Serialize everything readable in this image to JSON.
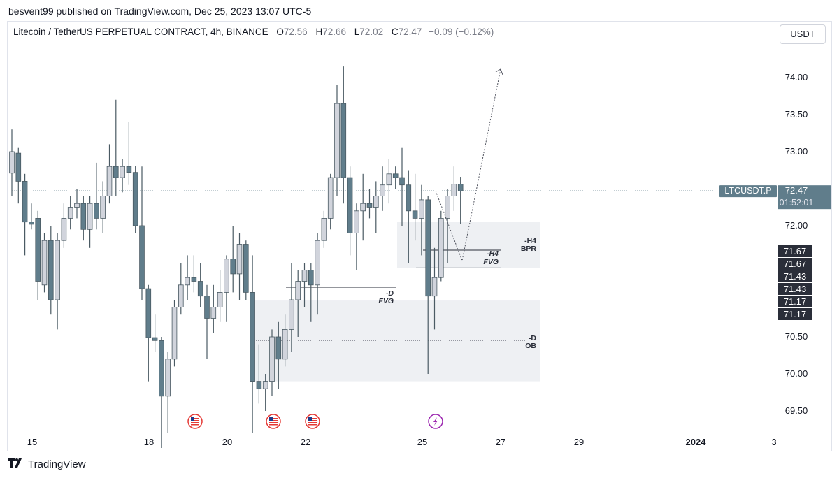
{
  "publish_line": "besvent99 published on TradingView.com, Dec 25, 2023 13:07 UTC-5",
  "legend": {
    "symbol": "Litecoin / TetherUS PERPETUAL CONTRACT, 4h, BINANCE",
    "o_label": "O",
    "o": "72.56",
    "h_label": "H",
    "h": "72.66",
    "l_label": "L",
    "l": "72.02",
    "c_label": "C",
    "c": "72.47",
    "change": "−0.09 (−0.12%)"
  },
  "currency": "USDT",
  "footer": {
    "brand": "TradingView",
    "logo": "tradingview-logo-icon"
  },
  "colors": {
    "up": "#d1d4dc",
    "down": "#607d8b",
    "zone": "#eef0f3",
    "price_line": "#607d8b",
    "axis_label_bg": "#2a2e39"
  },
  "chart_data": {
    "type": "candlestick",
    "y_axis": {
      "ticks": [
        "74.00",
        "73.50",
        "73.00",
        "72.00",
        "70.50",
        "70.00",
        "69.50"
      ],
      "range": [
        69.25,
        74.55
      ]
    },
    "x_axis": {
      "ticks": [
        "15",
        "18",
        "20",
        "22",
        "25",
        "27",
        "29",
        "2024",
        "3"
      ]
    },
    "candles": [
      {
        "o": 72.71,
        "h": 73.3,
        "l": 72.4,
        "c": 73.0
      },
      {
        "o": 72.98,
        "h": 73.05,
        "l": 72.3,
        "c": 72.6
      },
      {
        "o": 72.6,
        "h": 72.7,
        "l": 71.6,
        "c": 72.05
      },
      {
        "o": 72.05,
        "h": 72.3,
        "l": 71.95,
        "c": 72.02
      },
      {
        "o": 72.1,
        "h": 72.2,
        "l": 71.0,
        "c": 71.25
      },
      {
        "o": 71.2,
        "h": 71.9,
        "l": 71.1,
        "c": 71.8
      },
      {
        "o": 71.8,
        "h": 72.0,
        "l": 70.8,
        "c": 71.0
      },
      {
        "o": 71.0,
        "h": 71.9,
        "l": 70.6,
        "c": 71.8
      },
      {
        "o": 71.8,
        "h": 72.3,
        "l": 71.7,
        "c": 72.1
      },
      {
        "o": 72.1,
        "h": 72.4,
        "l": 71.95,
        "c": 72.25
      },
      {
        "o": 72.25,
        "h": 72.5,
        "l": 72.1,
        "c": 72.3
      },
      {
        "o": 72.3,
        "h": 72.4,
        "l": 71.8,
        "c": 71.95
      },
      {
        "o": 71.95,
        "h": 72.4,
        "l": 71.7,
        "c": 72.3
      },
      {
        "o": 72.3,
        "h": 72.85,
        "l": 71.95,
        "c": 72.1
      },
      {
        "o": 72.1,
        "h": 72.6,
        "l": 71.9,
        "c": 72.4
      },
      {
        "o": 72.4,
        "h": 73.1,
        "l": 72.3,
        "c": 72.8
      },
      {
        "o": 72.8,
        "h": 73.7,
        "l": 72.4,
        "c": 72.65
      },
      {
        "o": 72.65,
        "h": 72.9,
        "l": 72.45,
        "c": 72.8
      },
      {
        "o": 72.8,
        "h": 73.4,
        "l": 72.55,
        "c": 72.72
      },
      {
        "o": 72.72,
        "h": 72.81,
        "l": 71.9,
        "c": 72.0
      },
      {
        "o": 72.0,
        "h": 72.8,
        "l": 71.0,
        "c": 71.15
      },
      {
        "o": 71.15,
        "h": 71.2,
        "l": 69.9,
        "c": 70.49
      },
      {
        "o": 70.49,
        "h": 70.8,
        "l": 70.3,
        "c": 70.45
      },
      {
        "o": 70.45,
        "h": 70.5,
        "l": 69.0,
        "c": 69.7
      },
      {
        "o": 69.7,
        "h": 70.3,
        "l": 69.2,
        "c": 70.2
      },
      {
        "o": 70.2,
        "h": 71.0,
        "l": 70.1,
        "c": 70.9
      },
      {
        "o": 70.9,
        "h": 71.5,
        "l": 70.8,
        "c": 71.2
      },
      {
        "o": 71.2,
        "h": 71.6,
        "l": 71.0,
        "c": 71.3
      },
      {
        "o": 71.3,
        "h": 71.6,
        "l": 71.1,
        "c": 71.25
      },
      {
        "o": 71.25,
        "h": 71.5,
        "l": 70.9,
        "c": 71.05
      },
      {
        "o": 71.05,
        "h": 71.2,
        "l": 70.2,
        "c": 70.75
      },
      {
        "o": 70.75,
        "h": 71.2,
        "l": 70.55,
        "c": 70.9
      },
      {
        "o": 70.9,
        "h": 71.4,
        "l": 70.7,
        "c": 71.1
      },
      {
        "o": 71.1,
        "h": 71.6,
        "l": 70.7,
        "c": 71.55
      },
      {
        "o": 71.55,
        "h": 72.0,
        "l": 71.1,
        "c": 71.35
      },
      {
        "o": 71.35,
        "h": 71.9,
        "l": 71.0,
        "c": 71.75
      },
      {
        "o": 71.75,
        "h": 71.8,
        "l": 71.0,
        "c": 71.1
      },
      {
        "o": 71.1,
        "h": 71.6,
        "l": 69.2,
        "c": 69.9
      },
      {
        "o": 69.9,
        "h": 70.4,
        "l": 69.6,
        "c": 69.8
      },
      {
        "o": 69.8,
        "h": 70.0,
        "l": 69.5,
        "c": 69.9
      },
      {
        "o": 69.9,
        "h": 70.6,
        "l": 69.7,
        "c": 70.5
      },
      {
        "o": 70.5,
        "h": 70.7,
        "l": 69.8,
        "c": 70.2
      },
      {
        "o": 70.2,
        "h": 70.8,
        "l": 70.1,
        "c": 70.6
      },
      {
        "o": 70.6,
        "h": 71.5,
        "l": 70.3,
        "c": 71.0
      },
      {
        "o": 71.0,
        "h": 71.4,
        "l": 70.5,
        "c": 71.25
      },
      {
        "o": 71.25,
        "h": 71.5,
        "l": 70.9,
        "c": 71.4
      },
      {
        "o": 71.4,
        "h": 71.5,
        "l": 70.7,
        "c": 71.2
      },
      {
        "o": 71.2,
        "h": 71.9,
        "l": 70.8,
        "c": 71.8
      },
      {
        "o": 71.8,
        "h": 72.2,
        "l": 71.7,
        "c": 72.1
      },
      {
        "o": 72.1,
        "h": 72.7,
        "l": 71.95,
        "c": 72.65
      },
      {
        "o": 72.65,
        "h": 73.9,
        "l": 72.4,
        "c": 73.65
      },
      {
        "o": 73.65,
        "h": 74.15,
        "l": 72.3,
        "c": 72.65
      },
      {
        "o": 72.65,
        "h": 72.8,
        "l": 71.6,
        "c": 71.9
      },
      {
        "o": 71.9,
        "h": 72.3,
        "l": 71.4,
        "c": 72.2
      },
      {
        "o": 72.2,
        "h": 72.7,
        "l": 71.8,
        "c": 72.3
      },
      {
        "o": 72.3,
        "h": 72.5,
        "l": 72.1,
        "c": 72.25
      },
      {
        "o": 72.25,
        "h": 72.6,
        "l": 71.9,
        "c": 72.4
      },
      {
        "o": 72.4,
        "h": 72.8,
        "l": 72.2,
        "c": 72.55
      },
      {
        "o": 72.55,
        "h": 72.9,
        "l": 72.3,
        "c": 72.7
      },
      {
        "o": 72.7,
        "h": 72.8,
        "l": 72.5,
        "c": 72.65
      },
      {
        "o": 72.65,
        "h": 73.05,
        "l": 72.0,
        "c": 72.55
      },
      {
        "o": 72.55,
        "h": 72.75,
        "l": 71.5,
        "c": 72.2
      },
      {
        "o": 72.2,
        "h": 72.7,
        "l": 71.8,
        "c": 72.1
      },
      {
        "o": 72.1,
        "h": 72.55,
        "l": 71.6,
        "c": 72.35
      },
      {
        "o": 72.35,
        "h": 72.4,
        "l": 70.0,
        "c": 71.05
      },
      {
        "o": 71.05,
        "h": 71.7,
        "l": 70.6,
        "c": 71.3
      },
      {
        "o": 71.3,
        "h": 72.2,
        "l": 71.25,
        "c": 72.1
      },
      {
        "o": 72.1,
        "h": 72.5,
        "l": 71.5,
        "c": 72.4
      },
      {
        "o": 72.4,
        "h": 72.8,
        "l": 72.2,
        "c": 72.56
      },
      {
        "o": 72.56,
        "h": 72.66,
        "l": 72.02,
        "c": 72.47
      }
    ],
    "current_price": {
      "symbol_label": "LTCUSDT.P",
      "value": "72.47",
      "countdown": "01:52:01"
    },
    "zones": [
      {
        "name": "OB",
        "timeframe": "-D",
        "top": 70.99,
        "bottom": 69.9
      },
      {
        "name": "BPR",
        "timeframe": "-H4",
        "top": 72.05,
        "bottom": 71.43
      }
    ],
    "lines": [
      {
        "label_tf": "-D",
        "label_name": "FVG"
      },
      {
        "label_tf": "-H4",
        "label_name": "FVG"
      }
    ],
    "price_tags": [
      "71.67",
      "71.67",
      "71.43",
      "71.43",
      "71.17",
      "71.17"
    ],
    "event_icons": [
      "us-flag-icon",
      "us-flag-icon",
      "us-flag-icon",
      "lightning-icon"
    ]
  }
}
